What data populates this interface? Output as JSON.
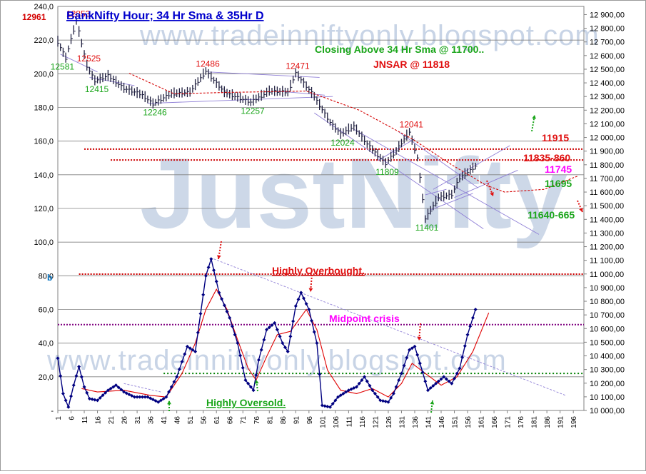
{
  "title": "BankNifty Hour; 34 Hr Sma & 35Hr D",
  "watermarks": {
    "url_top": "www.tradeinniftyonly.blogspot.com",
    "url_bottom": "www.tradeinniftyonly.blogspot.com",
    "brand": "JustNifty"
  },
  "colors": {
    "price_bars": "#1f1f3f",
    "sma_line": "#d40000",
    "oscillator": "#000080",
    "oscillator_signal": "#e00000",
    "resistance": "#cc0000",
    "support_green": "#008000",
    "midpoint": "#800080",
    "trend_lines": "#8f7fd6",
    "title": "#0000cc",
    "green_text": "#1aa51a",
    "red_text": "#e01010",
    "magenta_text": "#ff00ff",
    "watermark": "#c8d4e6"
  },
  "chart_data": {
    "type": "line",
    "x_axis": {
      "ticks": [
        "1",
        "6",
        "11",
        "16",
        "21",
        "26",
        "31",
        "36",
        "41",
        "46",
        "51",
        "56",
        "61",
        "66",
        "71",
        "76",
        "81",
        "86",
        "91",
        "96",
        "101",
        "106",
        "111",
        "116",
        "121",
        "126",
        "131",
        "136",
        "141",
        "146",
        "151",
        "156",
        "161",
        "166",
        "171",
        "176",
        "181",
        "186",
        "191",
        "196"
      ],
      "range": [
        1,
        200
      ]
    },
    "left_axis": {
      "ticks": [
        "-",
        "20,0",
        "40,0",
        "60,0",
        "80,0",
        "100,0",
        "120,0",
        "140,0",
        "160,0",
        "180,0",
        "200,0",
        "220,0",
        "240,0"
      ],
      "range": [
        0,
        240
      ],
      "top_label": "12961",
      "marker_b": "b"
    },
    "right_axis": {
      "ticks": [
        "10 000,00",
        "10 100,00",
        "10 200,00",
        "10 300,00",
        "10 400,00",
        "10 500,00",
        "10 600,00",
        "10 700,00",
        "10 800,00",
        "10 900,00",
        "11 000,00",
        "11 100,00",
        "11 200,00",
        "11 300,00",
        "11 400,00",
        "11 500,00",
        "11 600,00",
        "11 700,00",
        "11 800,00",
        "11 900,00",
        "12 000,00",
        "12 100,00",
        "12 200,00",
        "12 300,00",
        "12 400,00",
        "12 500,00",
        "12 600,00",
        "12 700,00",
        "12 800,00",
        "12 900,00"
      ],
      "range": [
        10000,
        12960
      ]
    },
    "price_key_points": [
      {
        "x": 1,
        "y": 12700
      },
      {
        "x": 4,
        "y": 12581
      },
      {
        "x": 8,
        "y": 12853
      },
      {
        "x": 12,
        "y": 12525
      },
      {
        "x": 15,
        "y": 12415
      },
      {
        "x": 20,
        "y": 12450
      },
      {
        "x": 26,
        "y": 12360
      },
      {
        "x": 33,
        "y": 12310
      },
      {
        "x": 37,
        "y": 12246
      },
      {
        "x": 44,
        "y": 12320
      },
      {
        "x": 51,
        "y": 12330
      },
      {
        "x": 57,
        "y": 12486
      },
      {
        "x": 64,
        "y": 12330
      },
      {
        "x": 74,
        "y": 12257
      },
      {
        "x": 81,
        "y": 12340
      },
      {
        "x": 88,
        "y": 12330
      },
      {
        "x": 91,
        "y": 12471
      },
      {
        "x": 98,
        "y": 12300
      },
      {
        "x": 104,
        "y": 12110
      },
      {
        "x": 108,
        "y": 12024
      },
      {
        "x": 113,
        "y": 12080
      },
      {
        "x": 118,
        "y": 11950
      },
      {
        "x": 125,
        "y": 11809
      },
      {
        "x": 129,
        "y": 11900
      },
      {
        "x": 134,
        "y": 12041
      },
      {
        "x": 137,
        "y": 11850
      },
      {
        "x": 140,
        "y": 11401
      },
      {
        "x": 145,
        "y": 11560
      },
      {
        "x": 150,
        "y": 11580
      },
      {
        "x": 153,
        "y": 11700
      },
      {
        "x": 159,
        "y": 11790
      }
    ],
    "sma_key_points": [
      {
        "x": 28,
        "y": 12470
      },
      {
        "x": 45,
        "y": 12320
      },
      {
        "x": 65,
        "y": 12330
      },
      {
        "x": 95,
        "y": 12340
      },
      {
        "x": 115,
        "y": 12200
      },
      {
        "x": 135,
        "y": 11990
      },
      {
        "x": 150,
        "y": 11800
      },
      {
        "x": 163,
        "y": 11650
      },
      {
        "x": 170,
        "y": 11600
      },
      {
        "x": 185,
        "y": 11620
      },
      {
        "x": 198,
        "y": 11720
      }
    ],
    "oscillator_key_points": [
      {
        "x": 1,
        "y": 31
      },
      {
        "x": 3,
        "y": 10
      },
      {
        "x": 5,
        "y": 2
      },
      {
        "x": 7,
        "y": 15
      },
      {
        "x": 9,
        "y": 26
      },
      {
        "x": 11,
        "y": 14
      },
      {
        "x": 13,
        "y": 7
      },
      {
        "x": 16,
        "y": 6
      },
      {
        "x": 20,
        "y": 12
      },
      {
        "x": 23,
        "y": 15
      },
      {
        "x": 26,
        "y": 11
      },
      {
        "x": 30,
        "y": 8
      },
      {
        "x": 35,
        "y": 8
      },
      {
        "x": 39,
        "y": 5
      },
      {
        "x": 42,
        "y": 8
      },
      {
        "x": 46,
        "y": 20
      },
      {
        "x": 50,
        "y": 38
      },
      {
        "x": 53,
        "y": 35
      },
      {
        "x": 57,
        "y": 80
      },
      {
        "x": 59,
        "y": 90
      },
      {
        "x": 62,
        "y": 70
      },
      {
        "x": 66,
        "y": 55
      },
      {
        "x": 69,
        "y": 40
      },
      {
        "x": 72,
        "y": 18
      },
      {
        "x": 75,
        "y": 12
      },
      {
        "x": 77,
        "y": 30
      },
      {
        "x": 80,
        "y": 48
      },
      {
        "x": 83,
        "y": 52
      },
      {
        "x": 86,
        "y": 40
      },
      {
        "x": 88,
        "y": 35
      },
      {
        "x": 91,
        "y": 62
      },
      {
        "x": 93,
        "y": 70
      },
      {
        "x": 96,
        "y": 60
      },
      {
        "x": 99,
        "y": 40
      },
      {
        "x": 101,
        "y": 3
      },
      {
        "x": 104,
        "y": 2
      },
      {
        "x": 107,
        "y": 8
      },
      {
        "x": 111,
        "y": 12
      },
      {
        "x": 114,
        "y": 14
      },
      {
        "x": 117,
        "y": 20
      },
      {
        "x": 120,
        "y": 12
      },
      {
        "x": 123,
        "y": 6
      },
      {
        "x": 126,
        "y": 5
      },
      {
        "x": 128,
        "y": 10
      },
      {
        "x": 131,
        "y": 22
      },
      {
        "x": 134,
        "y": 36
      },
      {
        "x": 136,
        "y": 38
      },
      {
        "x": 138,
        "y": 28
      },
      {
        "x": 141,
        "y": 12
      },
      {
        "x": 144,
        "y": 16
      },
      {
        "x": 147,
        "y": 20
      },
      {
        "x": 150,
        "y": 16
      },
      {
        "x": 153,
        "y": 25
      },
      {
        "x": 156,
        "y": 45
      },
      {
        "x": 159,
        "y": 60
      }
    ],
    "signal_key_points": [
      {
        "x": 10,
        "y": 13
      },
      {
        "x": 16,
        "y": 11
      },
      {
        "x": 26,
        "y": 12
      },
      {
        "x": 36,
        "y": 9
      },
      {
        "x": 42,
        "y": 8
      },
      {
        "x": 48,
        "y": 22
      },
      {
        "x": 53,
        "y": 40
      },
      {
        "x": 57,
        "y": 60
      },
      {
        "x": 61,
        "y": 72
      },
      {
        "x": 65,
        "y": 60
      },
      {
        "x": 69,
        "y": 42
      },
      {
        "x": 73,
        "y": 25
      },
      {
        "x": 76,
        "y": 18
      },
      {
        "x": 80,
        "y": 32
      },
      {
        "x": 84,
        "y": 45
      },
      {
        "x": 89,
        "y": 47
      },
      {
        "x": 95,
        "y": 60
      },
      {
        "x": 99,
        "y": 48
      },
      {
        "x": 103,
        "y": 24
      },
      {
        "x": 108,
        "y": 12
      },
      {
        "x": 114,
        "y": 10
      },
      {
        "x": 120,
        "y": 13
      },
      {
        "x": 126,
        "y": 8
      },
      {
        "x": 131,
        "y": 16
      },
      {
        "x": 135,
        "y": 28
      },
      {
        "x": 140,
        "y": 22
      },
      {
        "x": 146,
        "y": 15
      },
      {
        "x": 152,
        "y": 20
      },
      {
        "x": 158,
        "y": 35
      },
      {
        "x": 164,
        "y": 58
      }
    ],
    "horizontal_lines": [
      {
        "value": 11915,
        "axis": "right",
        "color": "#cc0000",
        "label": "11915"
      },
      {
        "value": 11835,
        "axis": "right",
        "color": "#cc0000",
        "label": "11835-860"
      },
      {
        "value": 81,
        "axis": "left",
        "color": "#cc0000",
        "label": "Highly Overbought."
      },
      {
        "value": 51,
        "axis": "left",
        "color": "#800080",
        "label": "Midpoint crisis"
      },
      {
        "value": 22,
        "axis": "left",
        "color": "#008000",
        "label": "Highly Oversold."
      }
    ],
    "price_labels": [
      {
        "text": "12853",
        "x": 8,
        "y": 12853,
        "color": "#e01010"
      },
      {
        "text": "12581",
        "x": 2,
        "y": 12581,
        "color": "#1aa51a"
      },
      {
        "text": "12525",
        "x": 12,
        "y": 12525,
        "color": "#e01010"
      },
      {
        "text": "12415",
        "x": 15,
        "y": 12415,
        "color": "#1aa51a"
      },
      {
        "text": "12486",
        "x": 57,
        "y": 12486,
        "color": "#e01010"
      },
      {
        "text": "12246",
        "x": 37,
        "y": 12246,
        "color": "#1aa51a"
      },
      {
        "text": "12471",
        "x": 91,
        "y": 12471,
        "color": "#e01010"
      },
      {
        "text": "12257",
        "x": 74,
        "y": 12257,
        "color": "#1aa51a"
      },
      {
        "text": "12024",
        "x": 108,
        "y": 12024,
        "color": "#1aa51a"
      },
      {
        "text": "12041",
        "x": 134,
        "y": 12041,
        "color": "#e01010"
      },
      {
        "text": "11809",
        "x": 125,
        "y": 11809,
        "color": "#1aa51a"
      },
      {
        "text": "11401",
        "x": 140,
        "y": 11401,
        "color": "#1aa51a"
      }
    ]
  },
  "annotations": {
    "closing_above": "Closing Above 34 Hr Sma @ 11700..",
    "jnsar": "JNSAR @ 11818",
    "level_11915": "11915",
    "level_11835": "11835-860",
    "level_11745": "11745",
    "level_11695": "11695",
    "level_11640": "11640-665",
    "overbought": "Highly Overbought.",
    "midpoint": "Midpoint crisis",
    "oversold": "Highly Oversold."
  }
}
